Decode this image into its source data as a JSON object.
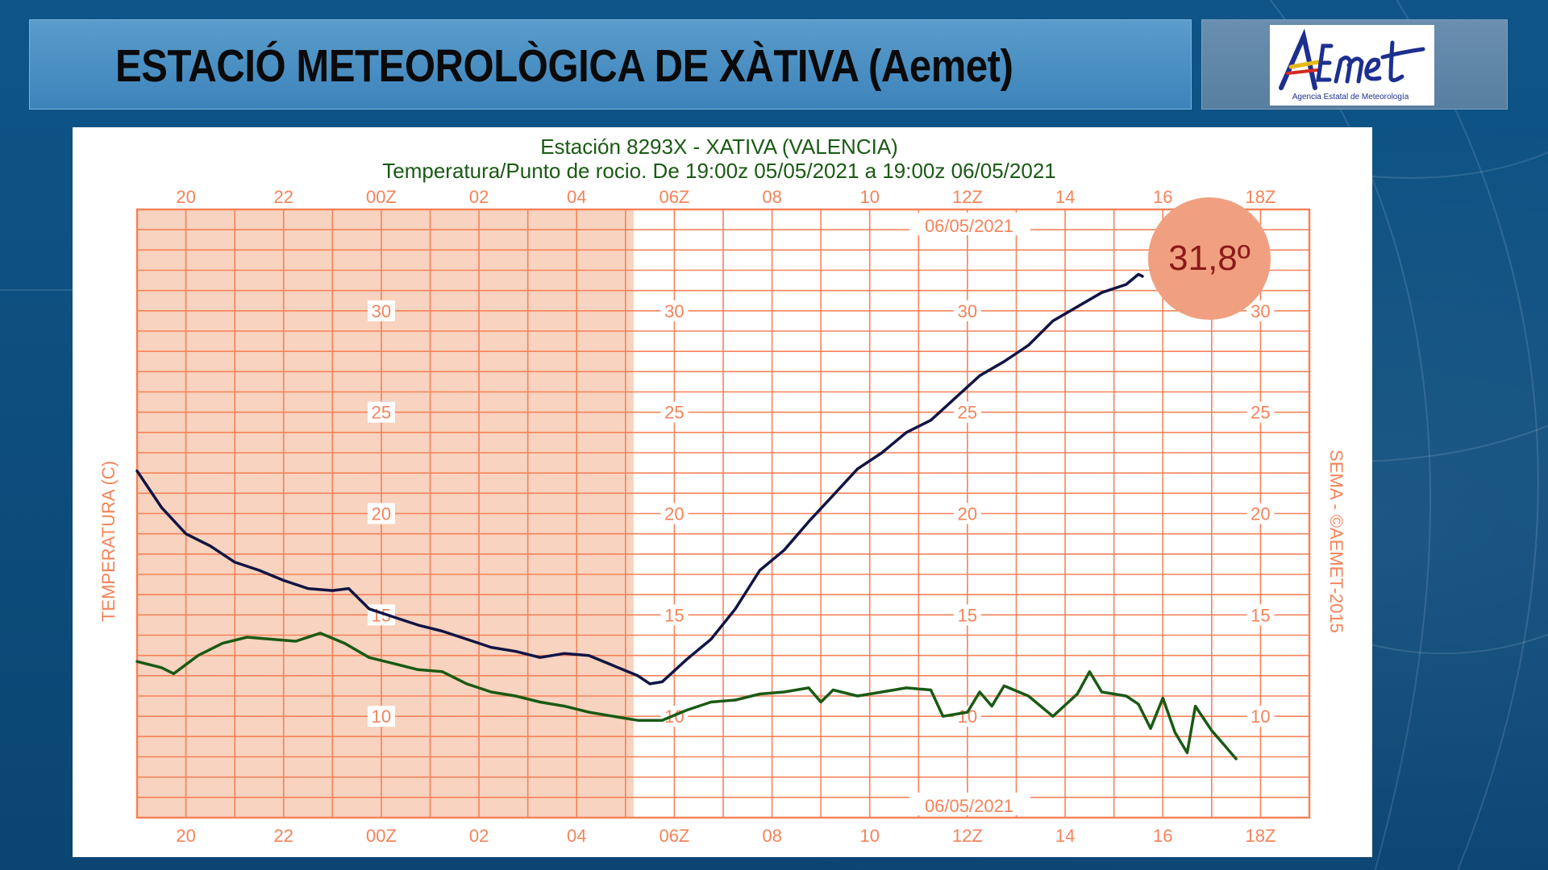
{
  "header": {
    "title": "ESTACIÓ METEOROLÒGICA DE XÀTIVA (Aemet)"
  },
  "logo": {
    "wordmark": "AEmet",
    "caption": "Agencia Estatal de Meteorología"
  },
  "badge": {
    "value_label": "31,8º"
  },
  "colors": {
    "background": "#0d4a78",
    "grid": "#f5835a",
    "night_fill": "#f8d3bf",
    "temperature": "#111444",
    "dew_point": "#1a5a14",
    "chart_title": "#1a5a14",
    "badge_fill": "#f0a080",
    "badge_text": "#8b1a1a"
  },
  "chart_data": {
    "type": "line",
    "title": "Estación 8293X - XATIVA (VALENCIA)",
    "subtitle": "Temperatura/Punto de rocio. De 19:00z 05/05/2021 a 19:00z 06/05/2021",
    "ylabel": "TEMPERATURA (C)",
    "right_label": "SEMA - ©AEMET-2015",
    "date_label_top": "06/05/2021",
    "date_label_bottom": "06/05/2021",
    "x_unit": "hours UTC",
    "xlim": [
      "2021-05-05T19:00Z",
      "2021-05-06T19:00Z"
    ],
    "ylim": [
      5,
      35
    ],
    "grid": true,
    "night_shading": [
      "2021-05-05T19:00Z",
      "2021-05-06T05:10Z"
    ],
    "x_ticks": [
      {
        "t": "2021-05-05T20:00Z",
        "label": "20"
      },
      {
        "t": "2021-05-05T22:00Z",
        "label": "22"
      },
      {
        "t": "2021-05-06T00:00Z",
        "label": "00Z"
      },
      {
        "t": "2021-05-06T02:00Z",
        "label": "02"
      },
      {
        "t": "2021-05-06T04:00Z",
        "label": "04"
      },
      {
        "t": "2021-05-06T06:00Z",
        "label": "06Z"
      },
      {
        "t": "2021-05-06T08:00Z",
        "label": "08"
      },
      {
        "t": "2021-05-06T10:00Z",
        "label": "10"
      },
      {
        "t": "2021-05-06T12:00Z",
        "label": "12Z"
      },
      {
        "t": "2021-05-06T14:00Z",
        "label": "14"
      },
      {
        "t": "2021-05-06T16:00Z",
        "label": "16"
      },
      {
        "t": "2021-05-06T18:00Z",
        "label": "18Z"
      }
    ],
    "y_ticks": [
      10,
      15,
      20,
      25,
      30
    ],
    "y_label_columns": [
      "2021-05-06T00:00Z",
      "2021-05-06T06:00Z",
      "2021-05-06T12:00Z",
      "2021-05-06T18:00Z"
    ],
    "series": [
      {
        "key": "temperature",
        "points": [
          [
            "2021-05-05T19:00Z",
            22.1
          ],
          [
            "2021-05-05T19:30Z",
            20.3
          ],
          [
            "2021-05-05T20:00Z",
            19.0
          ],
          [
            "2021-05-05T20:30Z",
            18.4
          ],
          [
            "2021-05-05T21:00Z",
            17.6
          ],
          [
            "2021-05-05T21:30Z",
            17.2
          ],
          [
            "2021-05-05T22:00Z",
            16.7
          ],
          [
            "2021-05-05T22:30Z",
            16.3
          ],
          [
            "2021-05-05T23:00Z",
            16.2
          ],
          [
            "2021-05-05T23:20Z",
            16.3
          ],
          [
            "2021-05-05T23:45Z",
            15.3
          ],
          [
            "2021-05-06T00:15Z",
            14.9
          ],
          [
            "2021-05-06T00:45Z",
            14.5
          ],
          [
            "2021-05-06T01:15Z",
            14.2
          ],
          [
            "2021-05-06T01:45Z",
            13.8
          ],
          [
            "2021-05-06T02:15Z",
            13.4
          ],
          [
            "2021-05-06T02:45Z",
            13.2
          ],
          [
            "2021-05-06T03:15Z",
            12.9
          ],
          [
            "2021-05-06T03:45Z",
            13.1
          ],
          [
            "2021-05-06T04:15Z",
            13.0
          ],
          [
            "2021-05-06T04:45Z",
            12.5
          ],
          [
            "2021-05-06T05:15Z",
            12.0
          ],
          [
            "2021-05-06T05:30Z",
            11.6
          ],
          [
            "2021-05-06T05:45Z",
            11.7
          ],
          [
            "2021-05-06T06:15Z",
            12.8
          ],
          [
            "2021-05-06T06:45Z",
            13.8
          ],
          [
            "2021-05-06T07:15Z",
            15.3
          ],
          [
            "2021-05-06T07:45Z",
            17.2
          ],
          [
            "2021-05-06T08:15Z",
            18.2
          ],
          [
            "2021-05-06T08:45Z",
            19.6
          ],
          [
            "2021-05-06T09:15Z",
            20.9
          ],
          [
            "2021-05-06T09:45Z",
            22.2
          ],
          [
            "2021-05-06T10:15Z",
            23.0
          ],
          [
            "2021-05-06T10:45Z",
            24.0
          ],
          [
            "2021-05-06T11:15Z",
            24.6
          ],
          [
            "2021-05-06T11:45Z",
            25.7
          ],
          [
            "2021-05-06T12:15Z",
            26.8
          ],
          [
            "2021-05-06T12:45Z",
            27.5
          ],
          [
            "2021-05-06T13:15Z",
            28.3
          ],
          [
            "2021-05-06T13:45Z",
            29.5
          ],
          [
            "2021-05-06T14:15Z",
            30.2
          ],
          [
            "2021-05-06T14:45Z",
            30.9
          ],
          [
            "2021-05-06T15:15Z",
            31.3
          ],
          [
            "2021-05-06T15:30Z",
            31.8
          ],
          [
            "2021-05-06T15:35Z",
            31.7
          ]
        ]
      },
      {
        "key": "dew_point",
        "points": [
          [
            "2021-05-05T19:00Z",
            12.7
          ],
          [
            "2021-05-05T19:30Z",
            12.4
          ],
          [
            "2021-05-05T19:45Z",
            12.1
          ],
          [
            "2021-05-05T20:15Z",
            13.0
          ],
          [
            "2021-05-05T20:45Z",
            13.6
          ],
          [
            "2021-05-05T21:15Z",
            13.9
          ],
          [
            "2021-05-05T21:45Z",
            13.8
          ],
          [
            "2021-05-05T22:15Z",
            13.7
          ],
          [
            "2021-05-05T22:45Z",
            14.1
          ],
          [
            "2021-05-05T23:15Z",
            13.6
          ],
          [
            "2021-05-05T23:45Z",
            12.9
          ],
          [
            "2021-05-06T00:15Z",
            12.6
          ],
          [
            "2021-05-06T00:45Z",
            12.3
          ],
          [
            "2021-05-06T01:15Z",
            12.2
          ],
          [
            "2021-05-06T01:45Z",
            11.6
          ],
          [
            "2021-05-06T02:15Z",
            11.2
          ],
          [
            "2021-05-06T02:45Z",
            11.0
          ],
          [
            "2021-05-06T03:15Z",
            10.7
          ],
          [
            "2021-05-06T03:45Z",
            10.5
          ],
          [
            "2021-05-06T04:15Z",
            10.2
          ],
          [
            "2021-05-06T04:45Z",
            10.0
          ],
          [
            "2021-05-06T05:15Z",
            9.8
          ],
          [
            "2021-05-06T05:45Z",
            9.8
          ],
          [
            "2021-05-06T06:15Z",
            10.3
          ],
          [
            "2021-05-06T06:45Z",
            10.7
          ],
          [
            "2021-05-06T07:15Z",
            10.8
          ],
          [
            "2021-05-06T07:45Z",
            11.1
          ],
          [
            "2021-05-06T08:15Z",
            11.2
          ],
          [
            "2021-05-06T08:45Z",
            11.4
          ],
          [
            "2021-05-06T09:00Z",
            10.7
          ],
          [
            "2021-05-06T09:15Z",
            11.3
          ],
          [
            "2021-05-06T09:45Z",
            11.0
          ],
          [
            "2021-05-06T10:15Z",
            11.2
          ],
          [
            "2021-05-06T10:45Z",
            11.4
          ],
          [
            "2021-05-06T11:15Z",
            11.3
          ],
          [
            "2021-05-06T11:30Z",
            10.0
          ],
          [
            "2021-05-06T12:00Z",
            10.2
          ],
          [
            "2021-05-06T12:15Z",
            11.2
          ],
          [
            "2021-05-06T12:30Z",
            10.5
          ],
          [
            "2021-05-06T12:45Z",
            11.5
          ],
          [
            "2021-05-06T13:15Z",
            11.0
          ],
          [
            "2021-05-06T13:45Z",
            10.0
          ],
          [
            "2021-05-06T14:15Z",
            11.1
          ],
          [
            "2021-05-06T14:30Z",
            12.2
          ],
          [
            "2021-05-06T14:45Z",
            11.2
          ],
          [
            "2021-05-06T15:15Z",
            11.0
          ],
          [
            "2021-05-06T15:30Z",
            10.6
          ],
          [
            "2021-05-06T15:45Z",
            9.4
          ],
          [
            "2021-05-06T16:00Z",
            10.9
          ],
          [
            "2021-05-06T16:15Z",
            9.2
          ],
          [
            "2021-05-06T16:30Z",
            8.2
          ],
          [
            "2021-05-06T16:40Z",
            10.5
          ],
          [
            "2021-05-06T17:00Z",
            9.3
          ],
          [
            "2021-05-06T17:15Z",
            8.6
          ],
          [
            "2021-05-06T17:30Z",
            7.9
          ]
        ]
      }
    ]
  }
}
